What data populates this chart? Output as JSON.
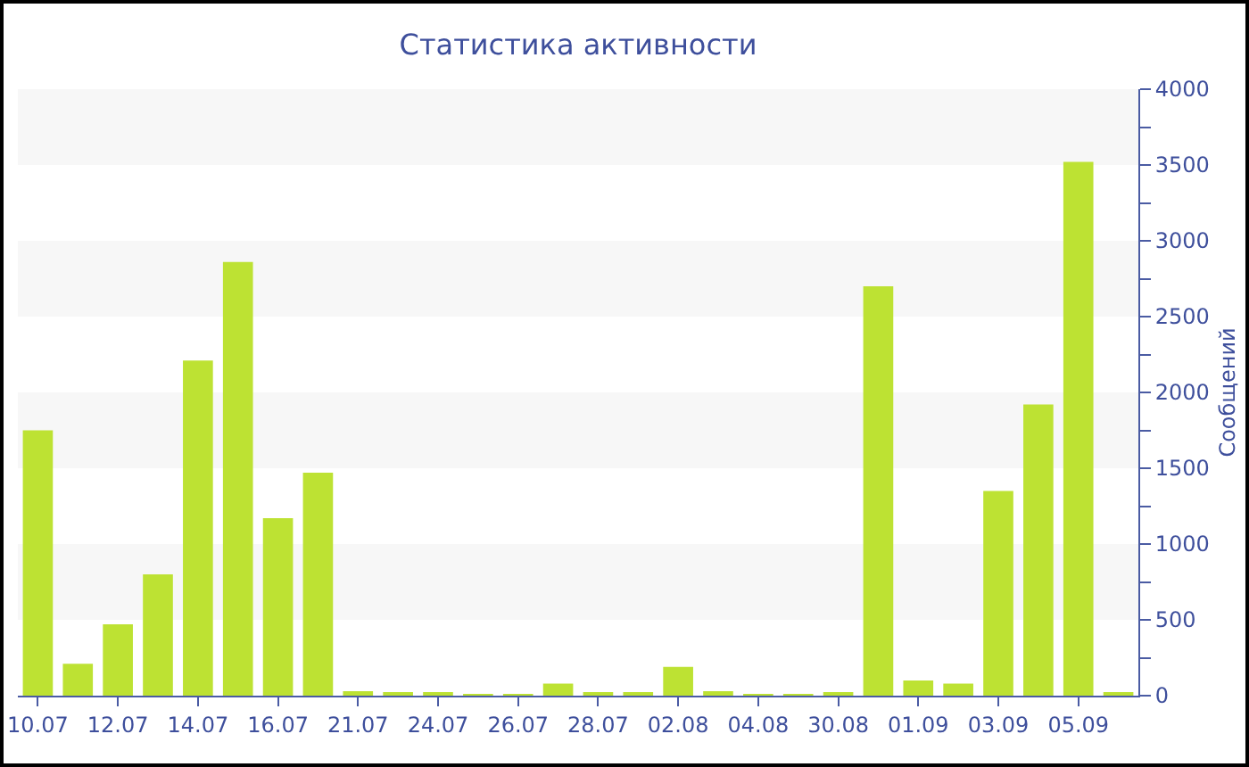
{
  "chart_data": {
    "type": "bar",
    "title": "Статистика активности",
    "ylabel": "Сообщений",
    "categories": [
      "10.07",
      null,
      "12.07",
      null,
      "14.07",
      null,
      "16.07",
      null,
      "21.07",
      null,
      "24.07",
      null,
      "26.07",
      null,
      "28.07",
      null,
      "02.08",
      null,
      "04.08",
      null,
      "30.08",
      null,
      "01.09",
      null,
      "03.09",
      null,
      "05.09",
      null
    ],
    "values": [
      1750,
      210,
      470,
      800,
      2210,
      2860,
      1170,
      1470,
      30,
      20,
      20,
      10,
      10,
      80,
      20,
      20,
      190,
      30,
      10,
      10,
      20,
      2700,
      100,
      80,
      1350,
      1920,
      3520,
      20
    ],
    "color": "#bde233",
    "ylim": [
      0,
      4000
    ],
    "yticks": [
      0,
      {
        "value": 250,
        "label": null
      },
      500,
      {
        "value": 750,
        "label": null
      },
      1000,
      {
        "value": 1250,
        "label": null
      },
      1500,
      {
        "value": 1750,
        "label": null
      },
      2000,
      {
        "value": 2250,
        "label": null
      },
      2500,
      {
        "value": 2750,
        "label": null
      },
      3000,
      {
        "value": 3250,
        "label": null
      },
      3500,
      {
        "value": 3750,
        "label": null
      },
      4000
    ],
    "bands": [
      {
        "axis": "y",
        "from": 500,
        "to": 1000,
        "color": "#f7f7f7"
      },
      {
        "axis": "y",
        "from": 1500,
        "to": 2000,
        "color": "#f7f7f7"
      },
      {
        "axis": "y",
        "from": 2500,
        "to": 3000,
        "color": "#f7f7f7"
      },
      {
        "axis": "y",
        "from": 3500,
        "to": 4000,
        "color": "#f7f7f7"
      }
    ],
    "grid": false
  }
}
